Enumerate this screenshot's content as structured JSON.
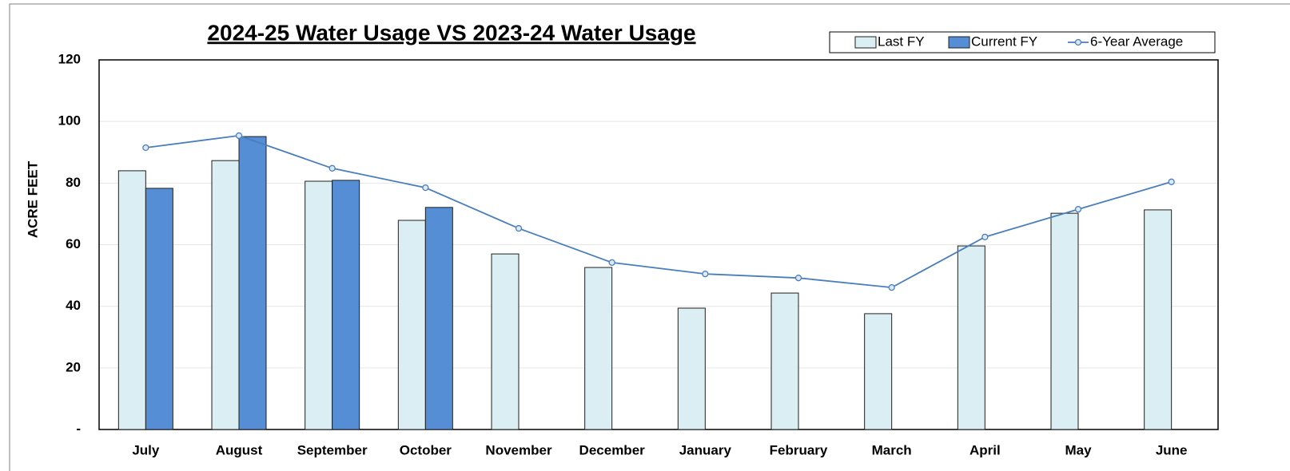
{
  "chart_data": {
    "type": "bar",
    "title": "2024-25 Water Usage VS 2023-24 Water Usage",
    "y_label": "ACRE FEET",
    "categories": [
      "July",
      "August",
      "September",
      "October",
      "November",
      "December",
      "January",
      "February",
      "March",
      "April",
      "May",
      "June"
    ],
    "series": [
      {
        "name": "Last FY",
        "type": "bar",
        "color": "#daeef3",
        "values": [
          84,
          87.3,
          80.6,
          67.9,
          57,
          52.6,
          39.4,
          44.3,
          37.6,
          59.6,
          70.2,
          71.3
        ]
      },
      {
        "name": "Current FY",
        "type": "bar",
        "color": "#558ed5",
        "values": [
          78.3,
          95.1,
          80.9,
          72.1,
          null,
          null,
          null,
          null,
          null,
          null,
          null,
          null
        ]
      },
      {
        "name": "6-Year Average",
        "type": "line",
        "color": "#4a7ebb",
        "values": [
          91.5,
          95.4,
          84.8,
          78.5,
          65.3,
          54.2,
          50.5,
          49.2,
          46.1,
          62.5,
          71.5,
          80.4
        ]
      }
    ],
    "ylim": [
      0,
      120
    ],
    "yticks": [
      {
        "value": 0,
        "label": "-"
      },
      20,
      40,
      60,
      80,
      100,
      120
    ],
    "grid": true,
    "legend": "top-right"
  }
}
